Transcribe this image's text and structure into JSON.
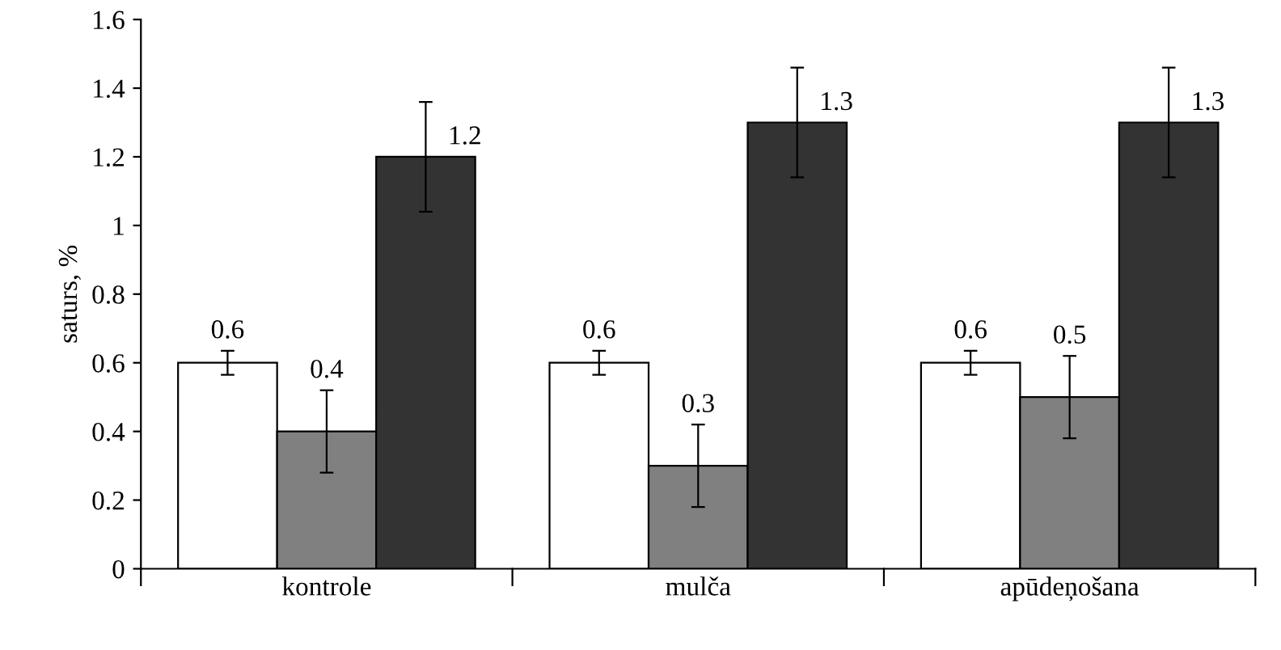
{
  "chart_data": {
    "type": "bar",
    "ylabel": "saturs, %",
    "categories": [
      "kontrole",
      "mulča",
      "apūdeņošana"
    ],
    "series": [
      {
        "color": "#ffffff",
        "values": [
          0.6,
          0.6,
          0.6
        ],
        "errors": [
          0.035,
          0.035,
          0.035
        ]
      },
      {
        "color": "#808080",
        "values": [
          0.4,
          0.3,
          0.5
        ],
        "errors": [
          0.12,
          0.12,
          0.12
        ]
      },
      {
        "color": "#333333",
        "values": [
          1.2,
          1.3,
          1.3
        ],
        "errors": [
          0.16,
          0.16,
          0.16
        ]
      }
    ],
    "ylim": [
      0,
      1.6
    ],
    "yticks": [
      0,
      0.2,
      0.4,
      0.6,
      0.8,
      1,
      1.2,
      1.4,
      1.6
    ],
    "data_labels": true,
    "grid": false,
    "legend": false
  }
}
